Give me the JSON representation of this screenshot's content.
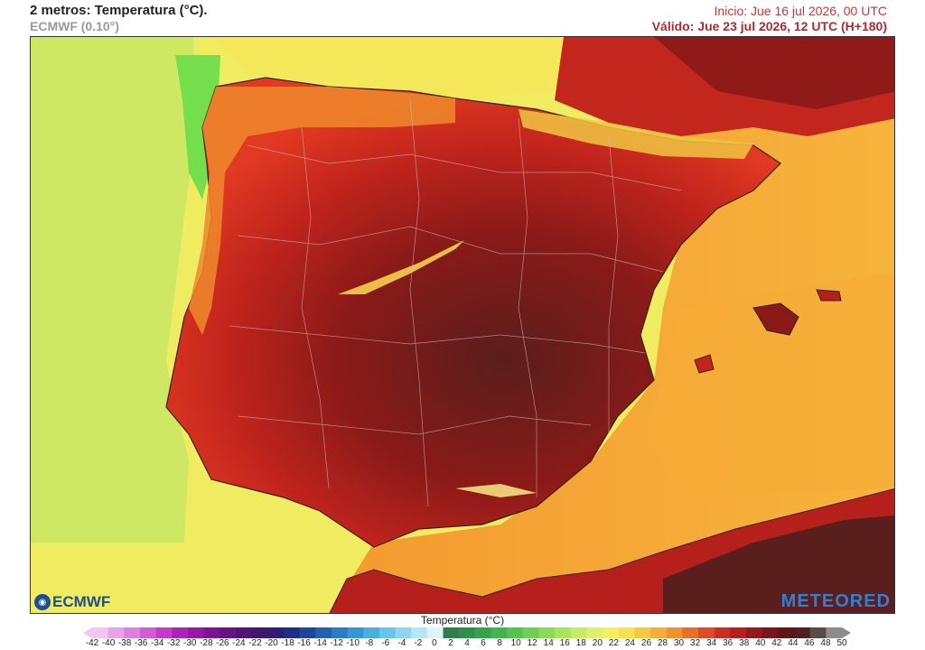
{
  "header": {
    "title": "2 metros: Temperatura (°C).",
    "model": "ECMWF (0.10°)",
    "init": "Inicio: Jue 16 jul 2026, 00 UTC",
    "valid": "Válido: Jue 23 jul 2026, 12 UTC (H+180)"
  },
  "logos": {
    "left": "ECMWF",
    "right": "METEORED"
  },
  "legend": {
    "title": "Temperatura (°C)",
    "ticks": [
      "-42",
      "-40",
      "-38",
      "-36",
      "-34",
      "-32",
      "-30",
      "-28",
      "-26",
      "-24",
      "-22",
      "-20",
      "-18",
      "-16",
      "-14",
      "-12",
      "-10",
      "-8",
      "-6",
      "-4",
      "-2",
      "0",
      "2",
      "4",
      "6",
      "8",
      "10",
      "12",
      "14",
      "16",
      "18",
      "20",
      "22",
      "24",
      "26",
      "28",
      "30",
      "32",
      "34",
      "36",
      "38",
      "40",
      "42",
      "44",
      "46",
      "48",
      "50"
    ],
    "colors": [
      "#f3c6f0",
      "#e9a2e8",
      "#df7fe0",
      "#d35bd6",
      "#c33bc9",
      "#ad22b7",
      "#9718a6",
      "#7d1496",
      "#661386",
      "#511378",
      "#3f176e",
      "#2d1d74",
      "#1f2d86",
      "#1f449b",
      "#2360b0",
      "#2a7cc4",
      "#3497d4",
      "#47b0e0",
      "#66c5ea",
      "#8bd7f1",
      "#b5e7f7",
      "#dff4fa",
      "#2f7f4d",
      "#2f9149",
      "#35a34a",
      "#42b54c",
      "#55c44f",
      "#6cd152",
      "#89dc57",
      "#a7e55d",
      "#c4ec64",
      "#e0f06b",
      "#f4ef5f",
      "#f7df4e",
      "#f8c842",
      "#f6ae38",
      "#f39030",
      "#ec6d2a",
      "#e14a24",
      "#cf2d1f",
      "#b5201c",
      "#95181a",
      "#781618",
      "#601617",
      "#4f2020",
      "#5a4a4a",
      "#8d8d8d"
    ]
  }
}
